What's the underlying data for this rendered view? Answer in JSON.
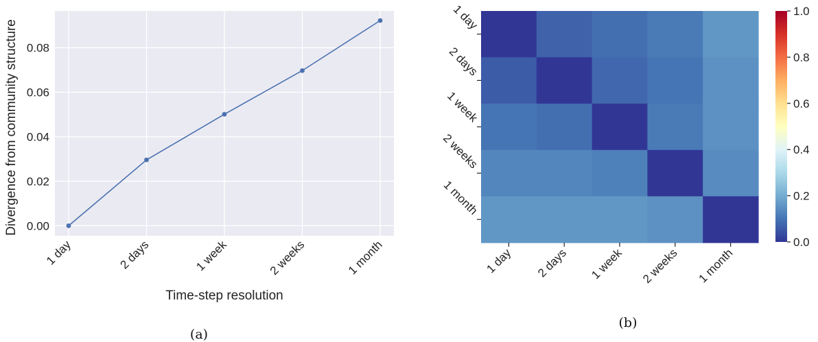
{
  "chart_data": [
    {
      "type": "line",
      "caption": "(a)",
      "xlabel": "Time-step resolution",
      "ylabel": "Divergence from community structure",
      "categories": [
        "1 day",
        "2 days",
        "1 week",
        "2 weeks",
        "1 month"
      ],
      "values": [
        0.0,
        0.0296,
        0.0501,
        0.0697,
        0.0922
      ],
      "yticks": [
        "0.00",
        "0.02",
        "0.04",
        "0.06",
        "0.08"
      ],
      "ytick_values": [
        0,
        0.02,
        0.04,
        0.06,
        0.08
      ],
      "ylim": [
        -0.0045,
        0.0965
      ],
      "grid": true,
      "background": "#eaeaf2",
      "line_color": "#4c72b0"
    },
    {
      "type": "heatmap",
      "caption": "(b)",
      "row_labels": [
        "1 day",
        "2 days",
        "1 week",
        "2 weeks",
        "1 month"
      ],
      "col_labels": [
        "1 day",
        "2 days",
        "1 week",
        "2 weeks",
        "1 month"
      ],
      "values": [
        [
          0.0,
          0.07,
          0.09,
          0.11,
          0.16
        ],
        [
          0.06,
          0.0,
          0.08,
          0.1,
          0.15
        ],
        [
          0.1,
          0.09,
          0.0,
          0.11,
          0.15
        ],
        [
          0.13,
          0.13,
          0.12,
          0.0,
          0.14
        ],
        [
          0.16,
          0.16,
          0.16,
          0.15,
          0.0
        ]
      ],
      "vmin": 0.0,
      "vmax": 1.0,
      "colormap": "RdYlBu_r",
      "colorbar_ticks": [
        "0.0",
        "0.2",
        "0.4",
        "0.6",
        "0.8",
        "1.0"
      ],
      "colorbar_tick_values": [
        0,
        0.2,
        0.4,
        0.6,
        0.8,
        1.0
      ]
    }
  ]
}
